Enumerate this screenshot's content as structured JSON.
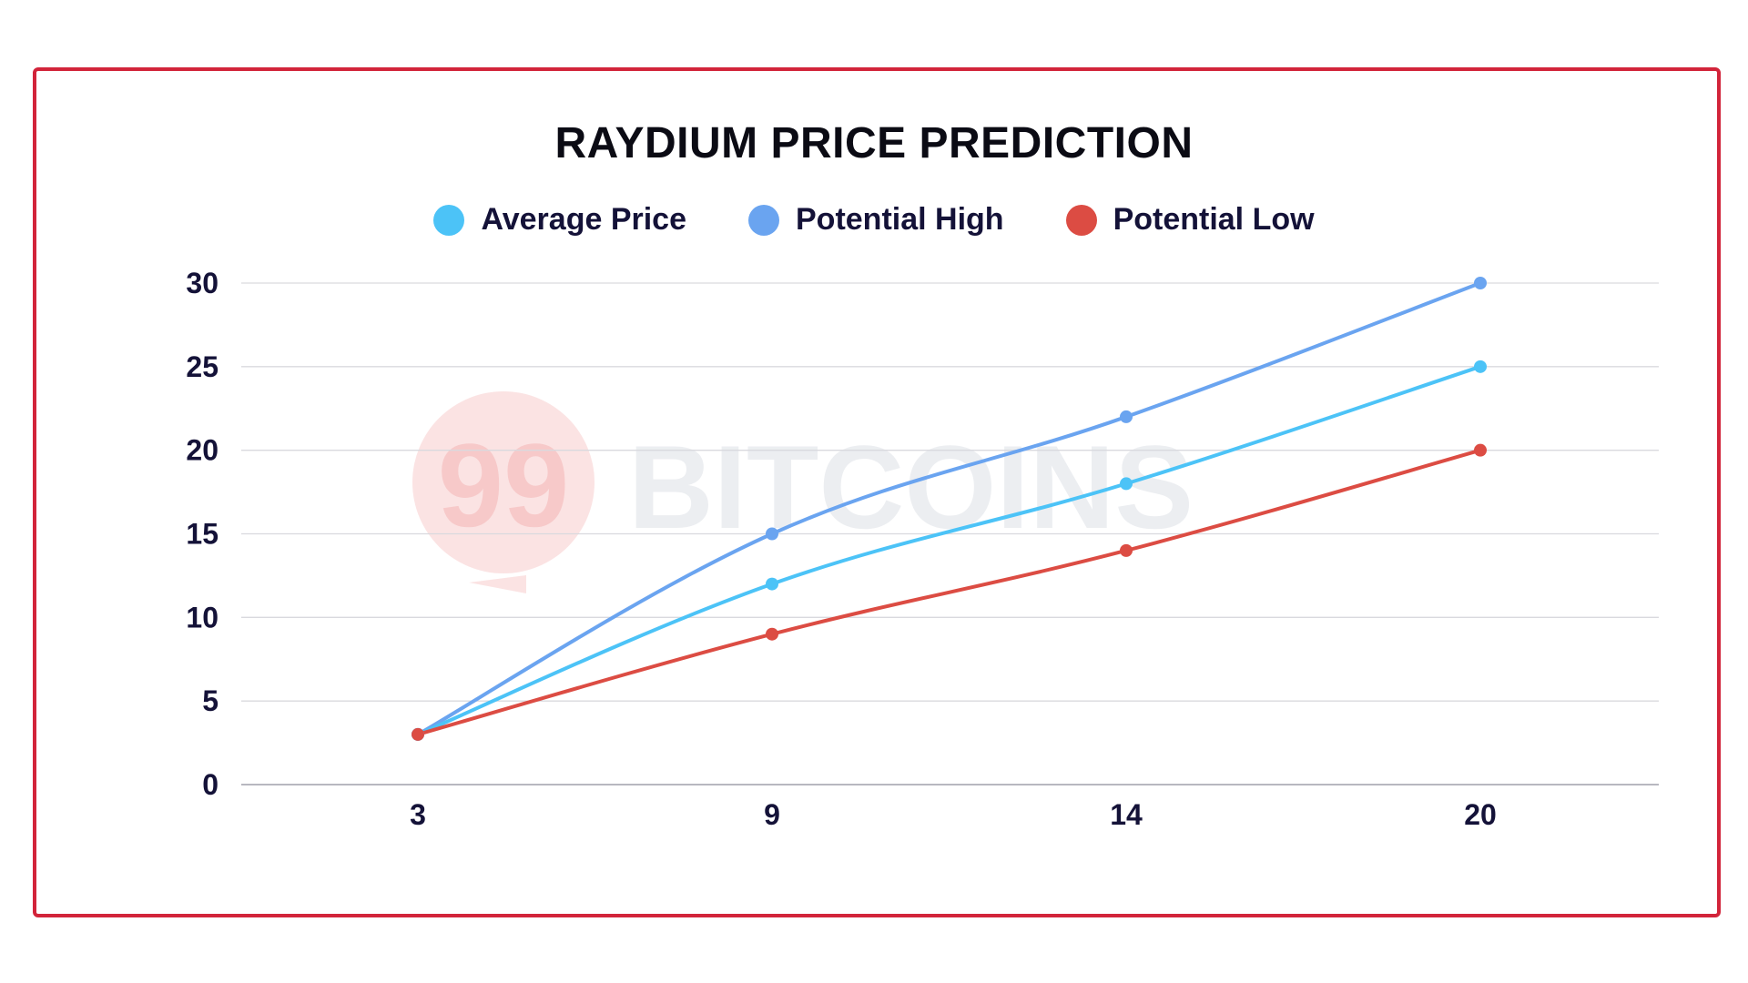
{
  "chart_data": {
    "type": "line",
    "title": "RAYDIUM PRICE PREDICTION",
    "x": [
      3,
      9,
      14,
      20
    ],
    "x_ticks": [
      "3",
      "9",
      "14",
      "20"
    ],
    "y_ticks": [
      "0",
      "5",
      "10",
      "15",
      "20",
      "25",
      "30"
    ],
    "ylim": [
      0,
      30
    ],
    "grid": true,
    "legend_position": "top-center",
    "series": [
      {
        "name": "Average Price",
        "color": "#4cc3f7",
        "values": [
          3,
          12,
          18,
          25
        ]
      },
      {
        "name": "Potential High",
        "color": "#6aa4f0",
        "values": [
          3,
          15,
          22,
          30
        ]
      },
      {
        "name": "Potential Low",
        "color": "#dc4c43",
        "values": [
          3,
          9,
          14,
          20
        ]
      }
    ],
    "watermark": "BITCOINS",
    "watermark_logo": "99"
  },
  "colors": {
    "frame": "#d2243a",
    "text": "#141238",
    "grid": "#d9d9de"
  }
}
